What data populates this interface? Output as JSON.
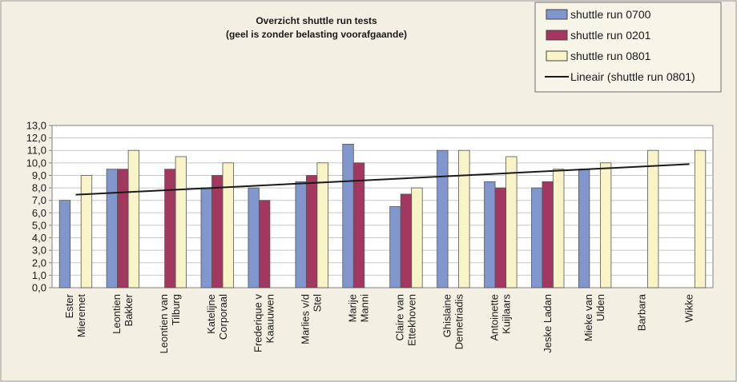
{
  "chart_data": {
    "type": "bar",
    "title": "Overzicht shuttle run tests",
    "subtitle": "(geel is zonder belasting voorafgaande)",
    "categories": [
      [
        "Ester",
        "Mieremet"
      ],
      [
        "Leontien",
        "Bakker"
      ],
      [
        "Leontien van",
        "Tilburg"
      ],
      [
        "Katelijne",
        "Corporaal"
      ],
      [
        "Frederique v",
        "Kaauuwen"
      ],
      [
        "Marlies v/d",
        "Stel"
      ],
      [
        "Marije",
        "Manni"
      ],
      [
        "Claire van",
        "Ettekhoven"
      ],
      [
        "Ghislaine",
        "Demetriadis"
      ],
      [
        "Antoinette",
        "Kuijlaars"
      ],
      [
        "Jeske Ladan"
      ],
      [
        "Mieke van",
        "Ulden"
      ],
      [
        "Barbara"
      ],
      [
        "Wikke"
      ]
    ],
    "series": [
      {
        "name": "shuttle run 0700",
        "color": "#8096cc",
        "values": [
          7.0,
          9.5,
          null,
          8.0,
          8.0,
          8.5,
          11.5,
          6.5,
          11.0,
          8.5,
          8.0,
          9.5,
          null,
          null
        ]
      },
      {
        "name": "shuttle run 0201",
        "color": "#a2385f",
        "values": [
          null,
          9.5,
          9.5,
          9.0,
          7.0,
          9.0,
          10.0,
          7.5,
          null,
          8.0,
          8.5,
          null,
          null,
          null
        ]
      },
      {
        "name": "shuttle run 0801",
        "color": "#f8f4c8",
        "values": [
          9.0,
          11.0,
          10.5,
          10.0,
          null,
          10.0,
          null,
          8.0,
          11.0,
          10.5,
          9.5,
          10.0,
          11.0,
          11.0
        ]
      }
    ],
    "trendline": {
      "name": "Lineair (shuttle run 0801)",
      "color": "#1a1a1a",
      "start": 7.45,
      "end": 9.9
    },
    "ylim": [
      0,
      13
    ],
    "yticks": [
      "0,0",
      "1,0",
      "2,0",
      "3,0",
      "4,0",
      "5,0",
      "6,0",
      "7,0",
      "8,0",
      "9,0",
      "10,0",
      "11,0",
      "12,0",
      "13,0"
    ],
    "grid": true,
    "legend_position": "top-right"
  }
}
